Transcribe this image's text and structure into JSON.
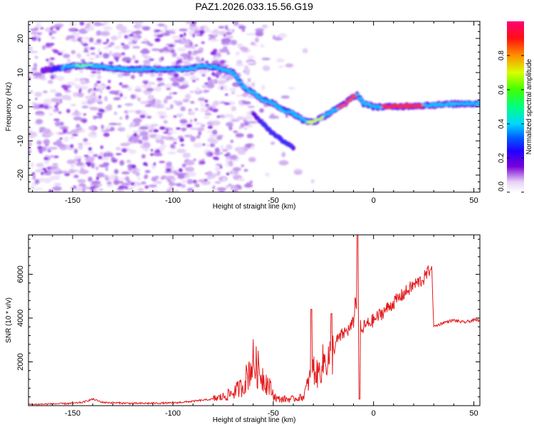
{
  "title": "PAZ1.2026.033.15.56.G19",
  "colors": {
    "snr_line": "#e41a1c",
    "axis": "#000000"
  },
  "chart_data": [
    {
      "type": "heatmap",
      "xlabel": "Height of straight line (km)",
      "ylabel": "Frequency (Hz)",
      "xlim": [
        -172,
        53
      ],
      "ylim": [
        -25,
        25
      ],
      "xticks": [
        -150,
        -100,
        -50,
        0,
        50
      ],
      "yticks": [
        -20,
        -10,
        0,
        10,
        20
      ],
      "colorbar": {
        "label": "Normalized spectral amplitude",
        "range": [
          0,
          1
        ],
        "ticks": [
          0.0,
          0.2,
          0.4,
          0.6,
          0.8
        ],
        "ticklabels": [
          "0.0",
          "0.2",
          "0.4",
          "0.6",
          "0.8"
        ]
      },
      "ridge": {
        "x": [
          -165,
          -150,
          -140,
          -125,
          -110,
          -95,
          -85,
          -78,
          -70,
          -65,
          -60,
          -55,
          -50,
          -45,
          -40,
          -35,
          -30,
          -25,
          -20,
          -15,
          -10,
          -8,
          -5,
          0,
          10,
          20,
          30,
          40,
          53
        ],
        "y": [
          10.5,
          12,
          12,
          11,
          11,
          11,
          12,
          11.5,
          10,
          6,
          4,
          2,
          1,
          -1,
          -2,
          -4,
          -4.5,
          -3,
          -1,
          0.5,
          3,
          3.5,
          1,
          0,
          0,
          0.3,
          0.5,
          0.8,
          1
        ]
      },
      "secondary_ridge": {
        "x": [
          -60,
          -55,
          -50,
          -45,
          -40
        ],
        "y": [
          -2,
          -5,
          -8,
          -10,
          -12
        ]
      }
    },
    {
      "type": "line",
      "xlabel": "Height of straight line (km)",
      "ylabel": "SNR (10 * v/v)",
      "xlim": [
        -172,
        53
      ],
      "ylim": [
        0,
        7800
      ],
      "xticks": [
        -150,
        -100,
        -50,
        0,
        50
      ],
      "yticks": [
        2000,
        4000,
        6000
      ],
      "series": [
        {
          "name": "SNR",
          "x": [
            -172,
            -160,
            -150,
            -145,
            -140,
            -135,
            -120,
            -100,
            -90,
            -80,
            -75,
            -70,
            -65,
            -62,
            -60,
            -58,
            -55,
            -52,
            -50,
            -48,
            -45,
            -40,
            -35,
            -32,
            -30,
            -28,
            -25,
            -22,
            -20,
            -18,
            -15,
            -12,
            -10,
            -9,
            -8,
            -7,
            -6,
            -5,
            0,
            5,
            10,
            15,
            20,
            25,
            28,
            29,
            30,
            35,
            40,
            45,
            50,
            53
          ],
          "y": [
            50,
            80,
            100,
            150,
            300,
            150,
            100,
            120,
            200,
            300,
            400,
            600,
            900,
            1600,
            2000,
            1700,
            1300,
            900,
            500,
            300,
            300,
            300,
            400,
            1200,
            1700,
            1400,
            2000,
            2200,
            2500,
            3000,
            3300,
            3500,
            3800,
            5000,
            3500,
            3900,
            3300,
            3600,
            3900,
            4300,
            4700,
            5100,
            5500,
            5800,
            6200,
            6300,
            3600,
            3800,
            3900,
            3800,
            3900,
            3900
          ]
        }
      ]
    }
  ]
}
